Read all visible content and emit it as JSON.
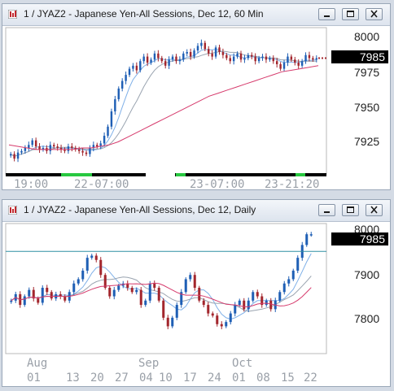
{
  "windows": [
    {
      "title": "1 / JYAZ2 - Japanese Yen-All Sessions, Dec 12, 60 Min",
      "price_tag": "7985",
      "session_labels": [
        "19:00",
        "22-07:00",
        "23-07:00",
        "23-21:20"
      ]
    },
    {
      "title": "1 / JYAZ2 - Japanese Yen-All Sessions, Dec 12, Daily",
      "price_tag": "7985",
      "month_labels": [
        "Aug",
        "Sep",
        "Oct"
      ],
      "day_labels": [
        "01",
        "13",
        "20",
        "27",
        "04",
        "10",
        "17",
        "24",
        "01",
        "08",
        "15",
        "22"
      ]
    }
  ],
  "colors": {
    "up": "#1f5fb5",
    "down": "#a3262d",
    "ma_short": "#7fb0e8",
    "ma_long": "#9aa4b0",
    "ma_pink": "#d63a6c",
    "hline": "#2f8fa3",
    "session_active": "#28c840"
  },
  "icons": [
    "app-icon",
    "minimize-icon",
    "maximize-icon",
    "close-icon"
  ],
  "chart_data": [
    {
      "type": "candlestick",
      "title": "1 / JYAZ2 - Japanese Yen-All Sessions, Dec 12, 60 Min",
      "ylim": [
        7910,
        8005
      ],
      "yticks": [
        8000,
        7975,
        7950,
        7925
      ],
      "last_price": 7985,
      "series": [
        {
          "name": "close",
          "values": [
            7922,
            7919,
            7923,
            7924,
            7926,
            7928,
            7931,
            7927,
            7925,
            7926,
            7924,
            7928,
            7927,
            7926,
            7925,
            7924,
            7927,
            7926,
            7925,
            7924,
            7923,
            7922,
            7926,
            7928,
            7927,
            7929,
            7934,
            7940,
            7950,
            7958,
            7965,
            7970,
            7974,
            7978,
            7980,
            7977,
            7983,
            7986,
            7982,
            7984,
            7988,
            7985,
            7983,
            7980,
            7984,
            7986,
            7983,
            7984,
            7988,
            7989,
            7986,
            7990,
            7993,
            7995,
            7991,
            7988,
            7986,
            7992,
            7989,
            7987,
            7985,
            7983,
            7986,
            7988,
            7984,
            7985,
            7987,
            7986,
            7983,
            7985,
            7986,
            7984,
            7985,
            7983,
            7981,
            7978,
            7982,
            7986,
            7984,
            7982,
            7980,
            7983,
            7987,
            7985,
            7984,
            7985
          ]
        },
        {
          "name": "pink_ma",
          "values": [
            7928,
            7927,
            7926,
            7925,
            7925,
            7925,
            7925,
            7925,
            7926,
            7926,
            7927,
            7928,
            7930,
            7933,
            7936,
            7939,
            7942,
            7945,
            7948,
            7951,
            7954,
            7957,
            7960,
            7962,
            7964,
            7966,
            7968,
            7970,
            7972,
            7974,
            7976,
            7977,
            7978,
            7979,
            7980
          ]
        }
      ]
    },
    {
      "type": "candlestick",
      "title": "1 / JYAZ2 - Japanese Yen-All Sessions, Dec 12, Daily",
      "ylim": [
        7710,
        8010
      ],
      "yticks": [
        8000,
        7900,
        7800
      ],
      "last_price": 7985,
      "horizontal_line": 7945,
      "series": [
        {
          "name": "close",
          "values": [
            7830,
            7845,
            7820,
            7840,
            7855,
            7835,
            7825,
            7860,
            7850,
            7835,
            7845,
            7840,
            7830,
            7850,
            7870,
            7880,
            7900,
            7930,
            7935,
            7925,
            7890,
            7860,
            7840,
            7855,
            7865,
            7870,
            7860,
            7850,
            7855,
            7820,
            7830,
            7870,
            7860,
            7830,
            7790,
            7770,
            7790,
            7820,
            7850,
            7880,
            7890,
            7860,
            7830,
            7820,
            7800,
            7795,
            7775,
            7770,
            7780,
            7800,
            7820,
            7830,
            7810,
            7830,
            7850,
            7840,
            7820,
            7830,
            7810,
            7830,
            7850,
            7870,
            7880,
            7900,
            7930,
            7960,
            7985,
            7985
          ]
        }
      ]
    }
  ]
}
